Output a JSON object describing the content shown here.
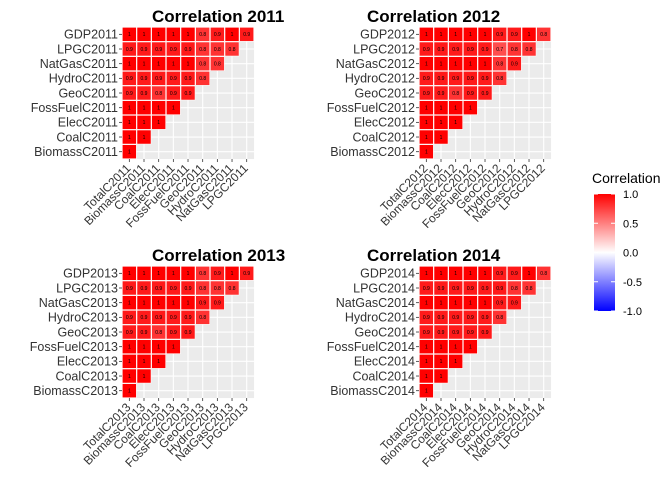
{
  "chart_data": [
    {
      "type": "heatmap",
      "title": "Correlation 2011",
      "rows": [
        "GDP2011",
        "LPGC2011",
        "NatGasC2011",
        "HydroC2011",
        "GeoC2011",
        "FossFuelC2011",
        "ElecC2011",
        "CoalC2011",
        "BiomassC2011"
      ],
      "cols": [
        "TotalC2011",
        "BiomassC2011",
        "CoalC2011",
        "ElecC2011",
        "FossFuelC2011",
        "GeoC2011",
        "HydroC2011",
        "NatGasC2011",
        "LPGC2011"
      ],
      "values": [
        [
          "1",
          "1",
          "1",
          "1",
          "1",
          "0.8",
          "0.9",
          "1",
          "0.9"
        ],
        [
          "0.9",
          "0.9",
          "0.9",
          "0.9",
          "0.9",
          "0.8",
          "0.8",
          "0.8"
        ],
        [
          "1",
          "1",
          "1",
          "1",
          "1",
          "0.8",
          "0.8"
        ],
        [
          "0.9",
          "0.9",
          "0.9",
          "0.9",
          "0.9",
          "0.8"
        ],
        [
          "0.9",
          "0.9",
          "0.8",
          "0.9",
          "0.9"
        ],
        [
          "1",
          "1",
          "1",
          "1"
        ],
        [
          "1",
          "1",
          "1"
        ],
        [
          "1",
          "1"
        ],
        [
          "1"
        ]
      ]
    },
    {
      "type": "heatmap",
      "title": "Correlation 2012",
      "rows": [
        "GDP2012",
        "LPGC2012",
        "NatGasC2012",
        "HydroC2012",
        "GeoC2012",
        "FossFuelC2012",
        "ElecC2012",
        "CoalC2012",
        "BiomassC2012"
      ],
      "cols": [
        "TotalC2012",
        "BiomassC2012",
        "CoalC2012",
        "ElecC2012",
        "FossFuelC2012",
        "GeoC2012",
        "HydroC2012",
        "NatGasC2012",
        "LPGC2012"
      ],
      "values": [
        [
          "1",
          "1",
          "1",
          "1",
          "1",
          "0.9",
          "0.9",
          "1",
          "0.8"
        ],
        [
          "0.9",
          "0.9",
          "0.9",
          "0.9",
          "0.9",
          "0.7",
          "0.8",
          "0.8"
        ],
        [
          "1",
          "1",
          "1",
          "1",
          "1",
          "0.8",
          "0.9"
        ],
        [
          "0.9",
          "0.9",
          "0.9",
          "0.9",
          "0.9",
          "0.8"
        ],
        [
          "0.9",
          "0.9",
          "0.8",
          "0.9",
          "0.9"
        ],
        [
          "1",
          "1",
          "1",
          "1"
        ],
        [
          "1",
          "1",
          "1"
        ],
        [
          "1",
          "1"
        ],
        [
          "1"
        ]
      ]
    },
    {
      "type": "heatmap",
      "title": "Correlation 2013",
      "rows": [
        "GDP2013",
        "LPGC2013",
        "NatGasC2013",
        "HydroC2013",
        "GeoC2013",
        "FossFuelC2013",
        "ElecC2013",
        "CoalC2013",
        "BiomassC2013"
      ],
      "cols": [
        "TotalC2013",
        "BiomassC2013",
        "CoalC2013",
        "ElecC2013",
        "FossFuelC2013",
        "GeoC2013",
        "HydroC2013",
        "NatGasC2013",
        "LPGC2013"
      ],
      "values": [
        [
          "1",
          "1",
          "1",
          "1",
          "1",
          "0.8",
          "0.9",
          "1",
          "0.9"
        ],
        [
          "0.9",
          "0.9",
          "0.9",
          "0.9",
          "0.9",
          "0.8",
          "0.8",
          "0.8"
        ],
        [
          "1",
          "1",
          "1",
          "1",
          "1",
          "0.9",
          "0.9"
        ],
        [
          "0.9",
          "0.9",
          "0.9",
          "0.9",
          "0.9",
          "0.8"
        ],
        [
          "0.9",
          "0.9",
          "0.8",
          "0.9",
          "0.9"
        ],
        [
          "1",
          "1",
          "1",
          "1"
        ],
        [
          "1",
          "1",
          "1"
        ],
        [
          "1",
          "1"
        ],
        [
          "1"
        ]
      ]
    },
    {
      "type": "heatmap",
      "title": "Correlation 2014",
      "rows": [
        "GDP2014",
        "LPGC2014",
        "NatGasC2014",
        "HydroC2014",
        "GeoC2014",
        "FossFuelC2014",
        "ElecC2014",
        "CoalC2014",
        "BiomassC2014"
      ],
      "cols": [
        "TotalC2014",
        "BiomassC2014",
        "CoalC2014",
        "ElecC2014",
        "FossFuelC2014",
        "GeoC2014",
        "HydroC2014",
        "NatGasC2014",
        "LPGC2014"
      ],
      "values": [
        [
          "1",
          "1",
          "1",
          "1",
          "1",
          "0.9",
          "0.9",
          "1",
          "0.8"
        ],
        [
          "0.9",
          "0.9",
          "0.9",
          "0.9",
          "0.9",
          "0.9",
          "0.8",
          "0.8"
        ],
        [
          "1",
          "1",
          "1",
          "1",
          "1",
          "0.9",
          "0.9"
        ],
        [
          "0.9",
          "0.9",
          "0.9",
          "0.9",
          "0.9",
          "0.8"
        ],
        [
          "0.9",
          "0.9",
          "0.9",
          "0.9",
          "0.9"
        ],
        [
          "1",
          "1",
          "1",
          "1"
        ],
        [
          "1",
          "1",
          "1"
        ],
        [
          "1",
          "1"
        ],
        [
          "1"
        ]
      ]
    }
  ],
  "legend": {
    "title": "Correlation",
    "ticks": [
      "1.0",
      "0.5",
      "0.0",
      "-0.5",
      "-1.0"
    ],
    "tick_values": [
      1.0,
      0.5,
      0.0,
      -0.5,
      -1.0
    ],
    "range": [
      -1,
      1
    ],
    "colors": {
      "low": "#0000ff",
      "mid": "#ffffff",
      "high": "#ff0000"
    },
    "placement": "right"
  },
  "colors": {
    "panel_background": "#ebebeb",
    "grid": "#ffffff",
    "tile_border": "#ffffff"
  }
}
